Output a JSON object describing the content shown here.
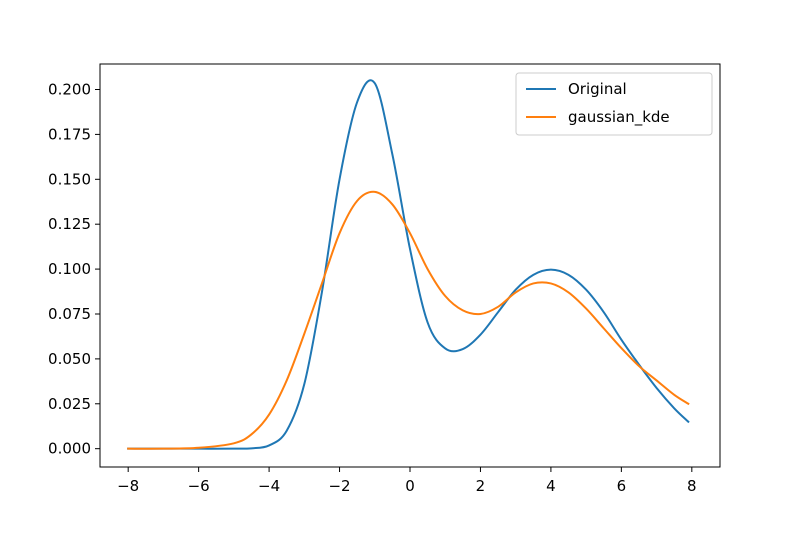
{
  "chart_data": {
    "type": "line",
    "title": "",
    "xlabel": "",
    "ylabel": "",
    "xlim": [
      -8.8,
      8.8
    ],
    "ylim": [
      -0.0102,
      0.2142
    ],
    "grid": false,
    "legend_placement": "top-right",
    "x_ticks": [
      -8,
      -6,
      -4,
      -2,
      0,
      2,
      4,
      6,
      8
    ],
    "x_tick_labels": [
      "−8",
      "−6",
      "−4",
      "−2",
      "0",
      "2",
      "4",
      "6",
      "8"
    ],
    "y_ticks": [
      0.0,
      0.025,
      0.05,
      0.075,
      0.1,
      0.125,
      0.15,
      0.175,
      0.2
    ],
    "y_tick_labels": [
      "0.000",
      "0.025",
      "0.050",
      "0.075",
      "0.100",
      "0.125",
      "0.150",
      "0.175",
      "0.200"
    ],
    "x": [
      -8,
      -7,
      -6,
      -5,
      -4.5,
      -4,
      -3.5,
      -3,
      -2.5,
      -2,
      -1.5,
      -1,
      -0.5,
      0,
      0.5,
      1,
      1.5,
      2,
      2.5,
      3,
      3.5,
      4,
      4.5,
      5,
      5.5,
      6,
      6.5,
      7,
      7.5,
      7.9
    ],
    "series": [
      {
        "name": "Original",
        "color": "#1f77b4",
        "values": [
          0.0,
          0.0,
          0.0,
          0.0,
          0.0002,
          0.0018,
          0.01,
          0.036,
          0.0872,
          0.15,
          0.193,
          0.2035,
          0.1638,
          0.1112,
          0.0703,
          0.0558,
          0.0555,
          0.0635,
          0.076,
          0.0885,
          0.0968,
          0.0997,
          0.0968,
          0.0885,
          0.076,
          0.0607,
          0.0468,
          0.0338,
          0.0225,
          0.015
        ]
      },
      {
        "name": "gaussian_kde",
        "color": "#ff7f0e",
        "values": [
          0.0,
          0.0,
          0.0005,
          0.003,
          0.008,
          0.019,
          0.038,
          0.064,
          0.092,
          0.12,
          0.138,
          0.143,
          0.136,
          0.12,
          0.1,
          0.085,
          0.077,
          0.075,
          0.079,
          0.087,
          0.092,
          0.092,
          0.087,
          0.078,
          0.067,
          0.056,
          0.046,
          0.038,
          0.03,
          0.025
        ]
      }
    ]
  }
}
